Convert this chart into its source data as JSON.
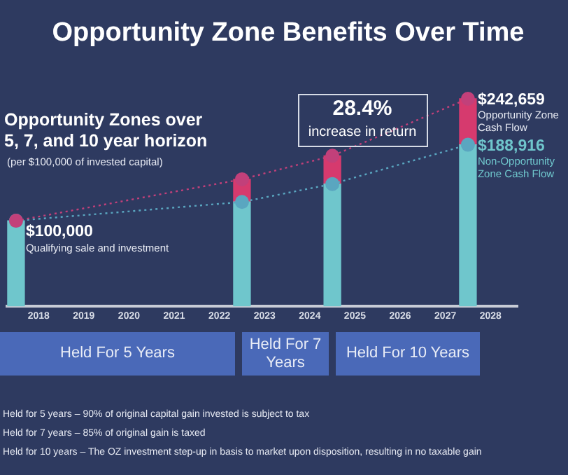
{
  "chart_data": {
    "type": "bar",
    "title": "Opportunity Zone Benefits Over Time",
    "subtitle": "Opportunity Zones over 5, 7, and 10 year horizon",
    "x": [
      2017.5,
      2022.5,
      2024.5,
      2027.5
    ],
    "xlim": [
      2017.3,
      2028.6
    ],
    "xticks": [
      2018,
      2019,
      2020,
      2021,
      2022,
      2023,
      2024,
      2025,
      2026,
      2027,
      2028
    ],
    "stacked": true,
    "series": [
      {
        "color": "#6fc6cc",
        "values": [
          100000,
          122000,
          143000,
          188916
        ]
      },
      {
        "color": "#d63a6e",
        "values": [
          null,
          26500,
          33000,
          53743
        ]
      },
      {
        "name": "Opportunity Zone Cash Flow",
        "type": "line",
        "color": "#c2407a",
        "values": [
          100000,
          148500,
          176000,
          242659
        ],
        "value_labels": [
          null,
          null,
          null,
          "$242,659"
        ]
      },
      {
        "name": "Non-Opportunity Zone Cash Flow",
        "type": "line",
        "color": "#5aa6c0",
        "values": [
          100000,
          122000,
          143000,
          188916
        ],
        "value_labels": [
          "$100,000",
          null,
          null,
          "$188,916"
        ]
      }
    ],
    "marker": "circle",
    "line_style": "dotted",
    "grid": false,
    "legend": false,
    "tick_labels": "x",
    "annotations": [
      "(per $100,000 of invested capital)",
      "28.4%",
      "increase in return",
      "Qualifying sale and investment",
      "Held For 5 Years",
      "Held For 7 Years",
      "Held For 10 Years",
      "Held for 5 years – 90% of original capital gain invested is subject to tax",
      "Held for 7 years – 85% of original gain is taxed",
      "Held for 10 years – The OZ investment step-up in basis to market upon disposition, resulting in no taxable gain"
    ]
  }
}
